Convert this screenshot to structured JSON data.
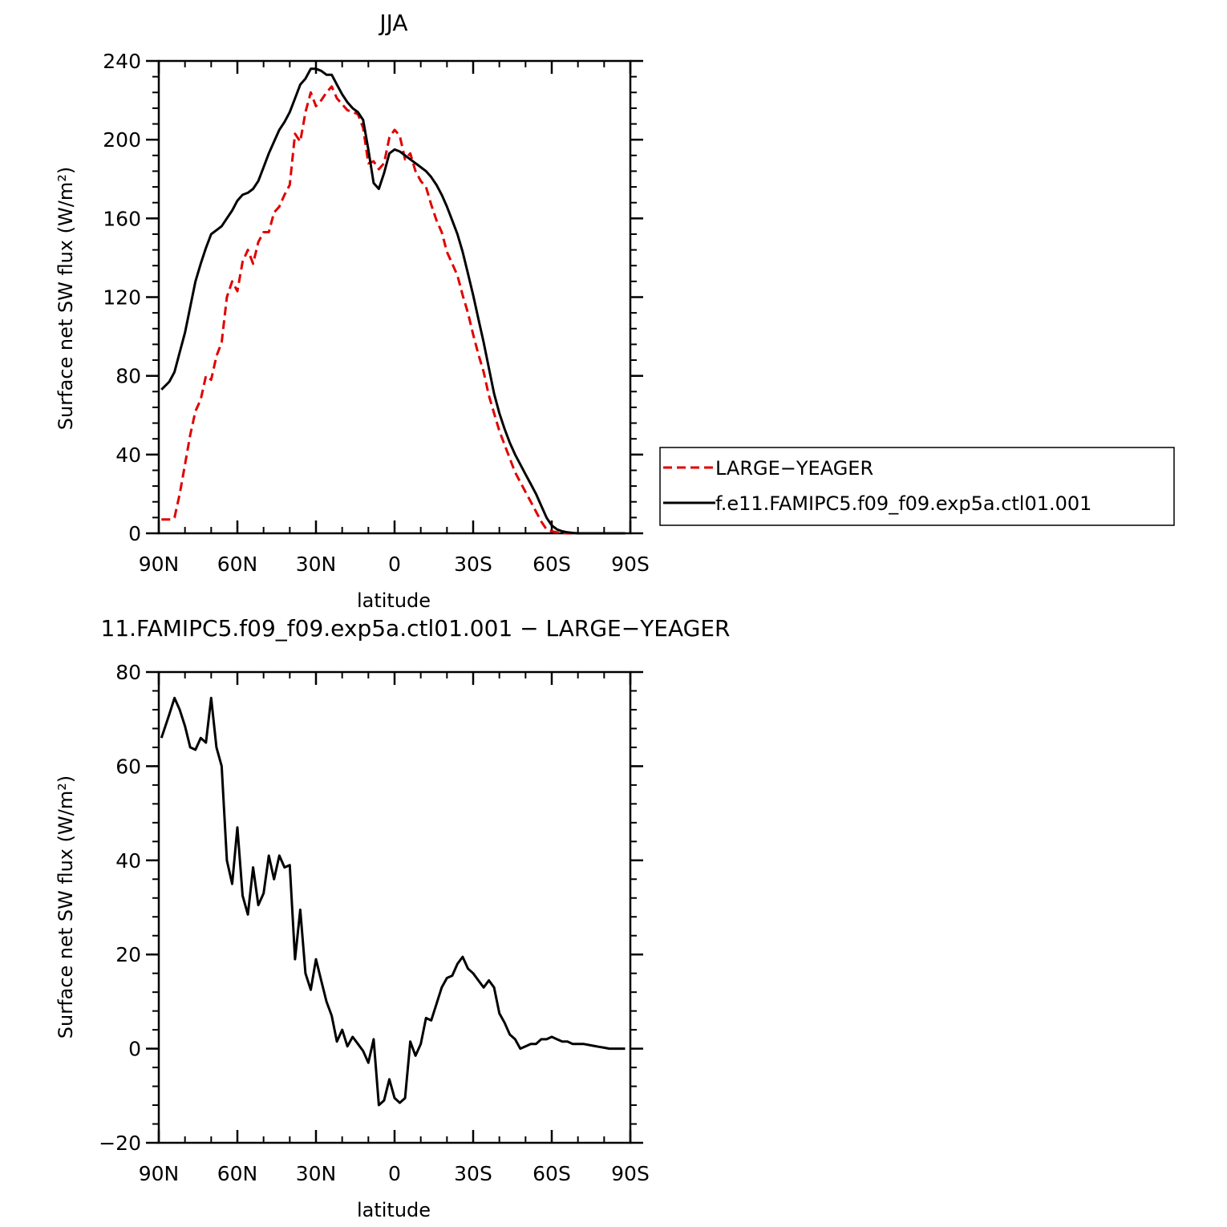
{
  "chart_data": [
    {
      "type": "line",
      "title": "JJA",
      "xlabel": "latitude",
      "ylabel": "Surface net SW flux (W/m²)",
      "xlim": [
        90,
        -90
      ],
      "ylim": [
        0,
        240
      ],
      "xticks": [
        {
          "v": 90,
          "label": "90N"
        },
        {
          "v": 60,
          "label": "60N"
        },
        {
          "v": 30,
          "label": "30N"
        },
        {
          "v": 0,
          "label": "0"
        },
        {
          "v": -30,
          "label": "30S"
        },
        {
          "v": -60,
          "label": "60S"
        },
        {
          "v": -90,
          "label": "90S"
        }
      ],
      "yticks": [
        {
          "v": 0,
          "label": "0"
        },
        {
          "v": 40,
          "label": "40"
        },
        {
          "v": 80,
          "label": "80"
        },
        {
          "v": 120,
          "label": "120"
        },
        {
          "v": 160,
          "label": "160"
        },
        {
          "v": 200,
          "label": "200"
        },
        {
          "v": 240,
          "label": "240"
        }
      ],
      "legend": {
        "placement": "right"
      },
      "series": [
        {
          "name": "LARGE−YEAGER",
          "color": "#e00000",
          "dash": true,
          "x": [
            89,
            85,
            84,
            82,
            80,
            78,
            76,
            74,
            72,
            70,
            68,
            66,
            64,
            62,
            60,
            58,
            56,
            54,
            52,
            50,
            48,
            46,
            44,
            42,
            40,
            38,
            36,
            34,
            32,
            30,
            28,
            26,
            24,
            22,
            20,
            18,
            16,
            14,
            12,
            10,
            8,
            6,
            4,
            2,
            0,
            -2,
            -4,
            -6,
            -8,
            -10,
            -12,
            -14,
            -16,
            -18,
            -20,
            -22,
            -24,
            -26,
            -28,
            -30,
            -32,
            -34,
            -36,
            -38,
            -40,
            -42,
            -44,
            -46,
            -48,
            -50,
            -52,
            -54,
            -56,
            -58,
            -60,
            -62,
            -64,
            -66,
            -68,
            -70,
            -72,
            -74,
            -76,
            -78,
            -80,
            -82,
            -84,
            -86,
            -88
          ],
          "y": [
            7,
            7,
            8,
            20,
            35,
            50,
            62,
            68,
            80,
            78,
            90,
            97,
            120,
            128,
            123,
            138,
            144,
            137,
            148,
            153,
            153,
            163,
            166,
            172,
            177,
            203,
            199,
            214,
            224,
            217,
            220,
            224,
            227,
            221,
            218,
            215,
            214,
            213,
            206,
            188,
            189,
            185,
            188,
            201,
            205,
            202,
            190,
            193,
            184,
            179,
            176,
            167,
            159,
            153,
            143,
            137,
            131,
            121,
            112,
            101,
            91,
            82,
            70,
            61,
            52,
            45,
            38,
            31,
            26,
            21,
            16,
            11,
            6,
            2,
            1,
            0.5,
            0.2,
            0,
            0,
            0,
            0,
            0,
            0,
            0,
            0,
            0,
            0,
            0,
            0
          ]
        },
        {
          "name": "f.e11.FAMIPC5.f09_f09.exp5a.ctl01.001",
          "color": "#000000",
          "dash": false,
          "x": [
            89,
            86,
            84,
            82,
            80,
            78,
            76,
            74,
            72,
            70,
            68,
            66,
            64,
            62,
            60,
            58,
            56,
            54,
            52,
            50,
            48,
            46,
            44,
            42,
            40,
            38,
            36,
            34,
            32,
            30,
            28,
            26,
            24,
            22,
            20,
            18,
            16,
            14,
            12,
            10,
            8,
            6,
            4,
            2,
            0,
            -2,
            -4,
            -6,
            -8,
            -10,
            -12,
            -14,
            -16,
            -18,
            -20,
            -22,
            -24,
            -26,
            -28,
            -30,
            -32,
            -34,
            -36,
            -38,
            -40,
            -42,
            -44,
            -46,
            -48,
            -50,
            -52,
            -54,
            -56,
            -58,
            -60,
            -62,
            -64,
            -66,
            -68,
            -70,
            -72,
            -74,
            -76,
            -78,
            -80,
            -82,
            -84,
            -86,
            -88
          ],
          "y": [
            73,
            77,
            82,
            92,
            102,
            115,
            128,
            137,
            145,
            152,
            154,
            156,
            160,
            164,
            169,
            172,
            173,
            175,
            179,
            186,
            193,
            199,
            205,
            209,
            214,
            221,
            228,
            231,
            236,
            236,
            235,
            233,
            233,
            228,
            223,
            219,
            216,
            214,
            210,
            195,
            178,
            175,
            183,
            193,
            195,
            194,
            192,
            190,
            188,
            186,
            184,
            181,
            177,
            172,
            166,
            159,
            152,
            143,
            132,
            121,
            109,
            97,
            84,
            71,
            61,
            53,
            46,
            40,
            35,
            30,
            25,
            20,
            14,
            8,
            4,
            2,
            1,
            0.5,
            0.2,
            0,
            0,
            0,
            0,
            0,
            0,
            0,
            0,
            0,
            0
          ]
        }
      ]
    },
    {
      "type": "line",
      "title": "11.FAMIPC5.f09_f09.exp5a.ctl01.001 − LARGE−YEAGER",
      "xlabel": "latitude",
      "ylabel": "Surface net SW flux (W/m²)",
      "xlim": [
        90,
        -90
      ],
      "ylim": [
        -20,
        80
      ],
      "xticks": [
        {
          "v": 90,
          "label": "90N"
        },
        {
          "v": 60,
          "label": "60N"
        },
        {
          "v": 30,
          "label": "30N"
        },
        {
          "v": 0,
          "label": "0"
        },
        {
          "v": -30,
          "label": "30S"
        },
        {
          "v": -60,
          "label": "60S"
        },
        {
          "v": -90,
          "label": "90S"
        }
      ],
      "yticks": [
        {
          "v": -20,
          "label": "−20"
        },
        {
          "v": 0,
          "label": "0"
        },
        {
          "v": 20,
          "label": "20"
        },
        {
          "v": 40,
          "label": "40"
        },
        {
          "v": 60,
          "label": "60"
        },
        {
          "v": 80,
          "label": "80"
        }
      ],
      "series": [
        {
          "color": "#000000",
          "dash": false,
          "x": [
            89,
            86,
            84,
            82,
            80,
            78,
            76,
            74,
            72,
            70,
            68,
            66,
            64,
            62,
            60,
            58,
            56,
            54,
            52,
            50,
            48,
            46,
            44,
            42,
            40,
            38,
            36,
            34,
            32,
            30,
            28,
            26,
            24,
            22,
            20,
            18,
            16,
            14,
            12,
            10,
            8,
            6,
            4,
            2,
            0,
            -2,
            -4,
            -6,
            -8,
            -10,
            -12,
            -14,
            -16,
            -18,
            -20,
            -22,
            -24,
            -26,
            -28,
            -30,
            -32,
            -34,
            -36,
            -38,
            -40,
            -42,
            -44,
            -46,
            -48,
            -50,
            -52,
            -54,
            -56,
            -58,
            -60,
            -62,
            -64,
            -66,
            -68,
            -70,
            -72,
            -74,
            -76,
            -78,
            -80,
            -82,
            -84,
            -86,
            -88
          ],
          "y": [
            66,
            71,
            74.5,
            72,
            68.5,
            64,
            63.5,
            66,
            65,
            74.5,
            64,
            60,
            40,
            35,
            47,
            32.5,
            28.5,
            38.5,
            30.5,
            33,
            41,
            36,
            41,
            38.5,
            39,
            19,
            29.5,
            16,
            12.5,
            19,
            14.5,
            10,
            7,
            1.5,
            4,
            0.5,
            2.5,
            1,
            -0.5,
            -3,
            2,
            -12,
            -11,
            -6.5,
            -10.5,
            -11.5,
            -10.5,
            1.5,
            -1.5,
            1,
            6.5,
            6,
            9.5,
            13,
            15,
            15.5,
            18,
            19.5,
            17,
            16,
            14.5,
            13,
            14.5,
            13,
            7.5,
            5.5,
            3,
            2,
            0,
            0.5,
            1,
            1,
            2,
            2,
            2.5,
            2,
            1.5,
            1.5,
            1,
            1,
            1,
            0.8,
            0.6,
            0.4,
            0.2,
            0,
            0,
            0,
            0
          ]
        }
      ]
    }
  ],
  "legend_entries": [
    "LARGE−YEAGER",
    "f.e11.FAMIPC5.f09_f09.exp5a.ctl01.001"
  ]
}
